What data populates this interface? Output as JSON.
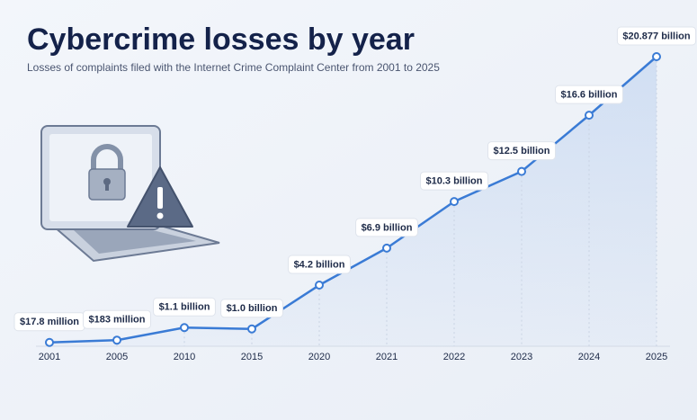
{
  "chart_data": {
    "type": "line",
    "title": "Cybercrime losses by year",
    "subtitle": "Losses of complaints filed with the Internet Crime Complaint Center from 2001 to 2025",
    "categories": [
      "2001",
      "2005",
      "2010",
      "2015",
      "2020",
      "2021",
      "2022",
      "2023",
      "2024",
      "2025"
    ],
    "values": [
      0.0178,
      0.183,
      1.1,
      1.0,
      4.2,
      6.9,
      10.3,
      12.5,
      16.6,
      20.877
    ],
    "value_labels": [
      "$17.8 million",
      "$183 million",
      "$1.1 billion",
      "$1.0 billion",
      "$4.2 billion",
      "$6.9 billion",
      "$10.3 billion",
      "$12.5 billion",
      "$16.6 billion",
      "$20.877 billion"
    ],
    "color": "#3a7bd5"
  }
}
